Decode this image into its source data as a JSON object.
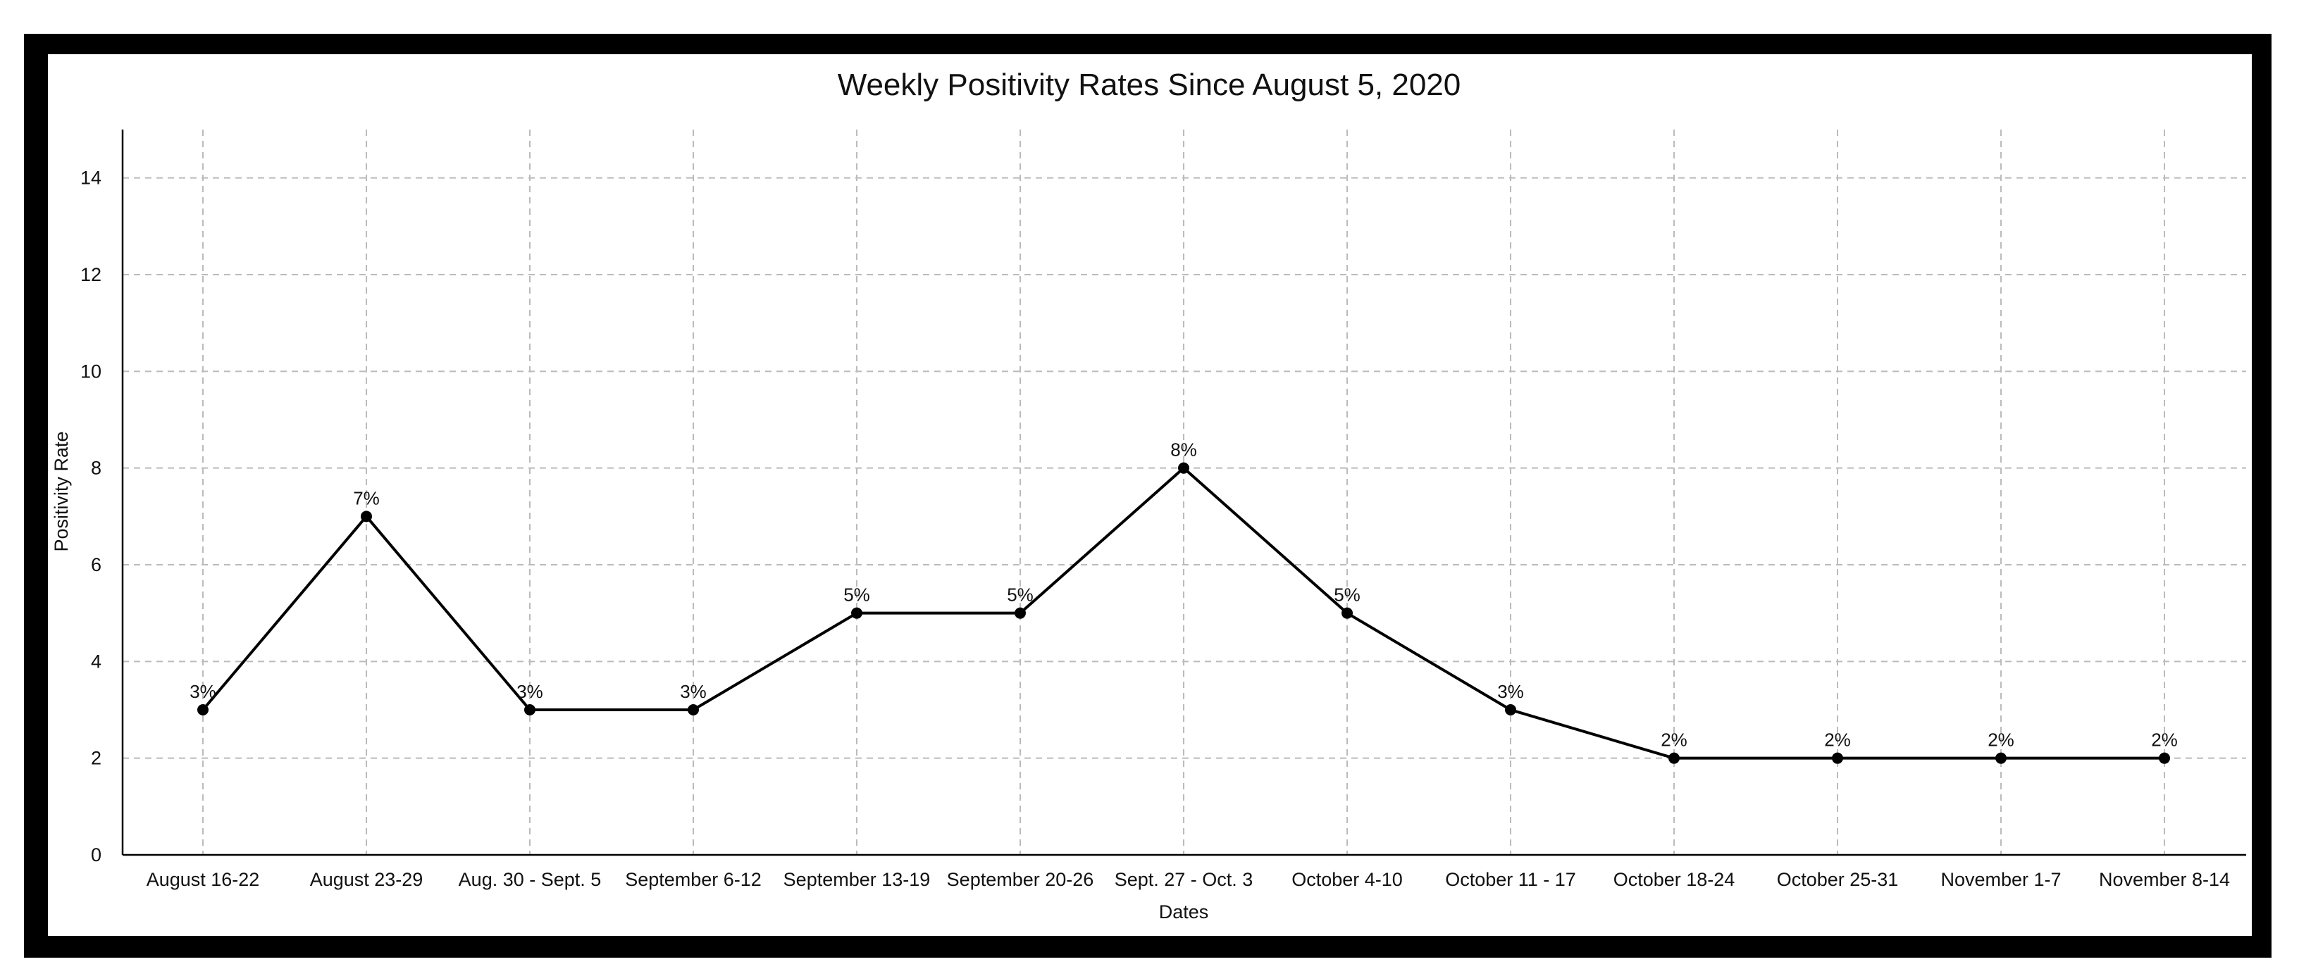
{
  "chart_data": {
    "type": "line",
    "title": "Weekly Positivity Rates Since August 5, 2020",
    "xlabel": "Dates",
    "ylabel": "Positivity Rate",
    "categories": [
      "August 16-22",
      "August 23-29",
      "Aug. 30 - Sept. 5",
      "September 6-12",
      "September 13-19",
      "September 20-26",
      "Sept. 27 - Oct. 3",
      "October 4-10",
      "October 11 - 17",
      "October 18-24",
      "October 25-31",
      "November 1-7",
      "November 8-14"
    ],
    "values": [
      3,
      7,
      3,
      3,
      5,
      5,
      8,
      5,
      3,
      2,
      2,
      2,
      2
    ],
    "data_labels": [
      "3%",
      "7%",
      "3%",
      "3%",
      "5%",
      "5%",
      "8%",
      "5%",
      "3%",
      "2%",
      "2%",
      "2%",
      "2%"
    ],
    "ylim": [
      0,
      15
    ],
    "yticks": [
      0,
      2,
      4,
      6,
      8,
      10,
      12,
      14
    ],
    "grid": true,
    "legend": "none",
    "colors": {
      "frame": "#000000",
      "line": "#000000",
      "grid": "#bbbbbb",
      "background": "#ffffff"
    }
  }
}
